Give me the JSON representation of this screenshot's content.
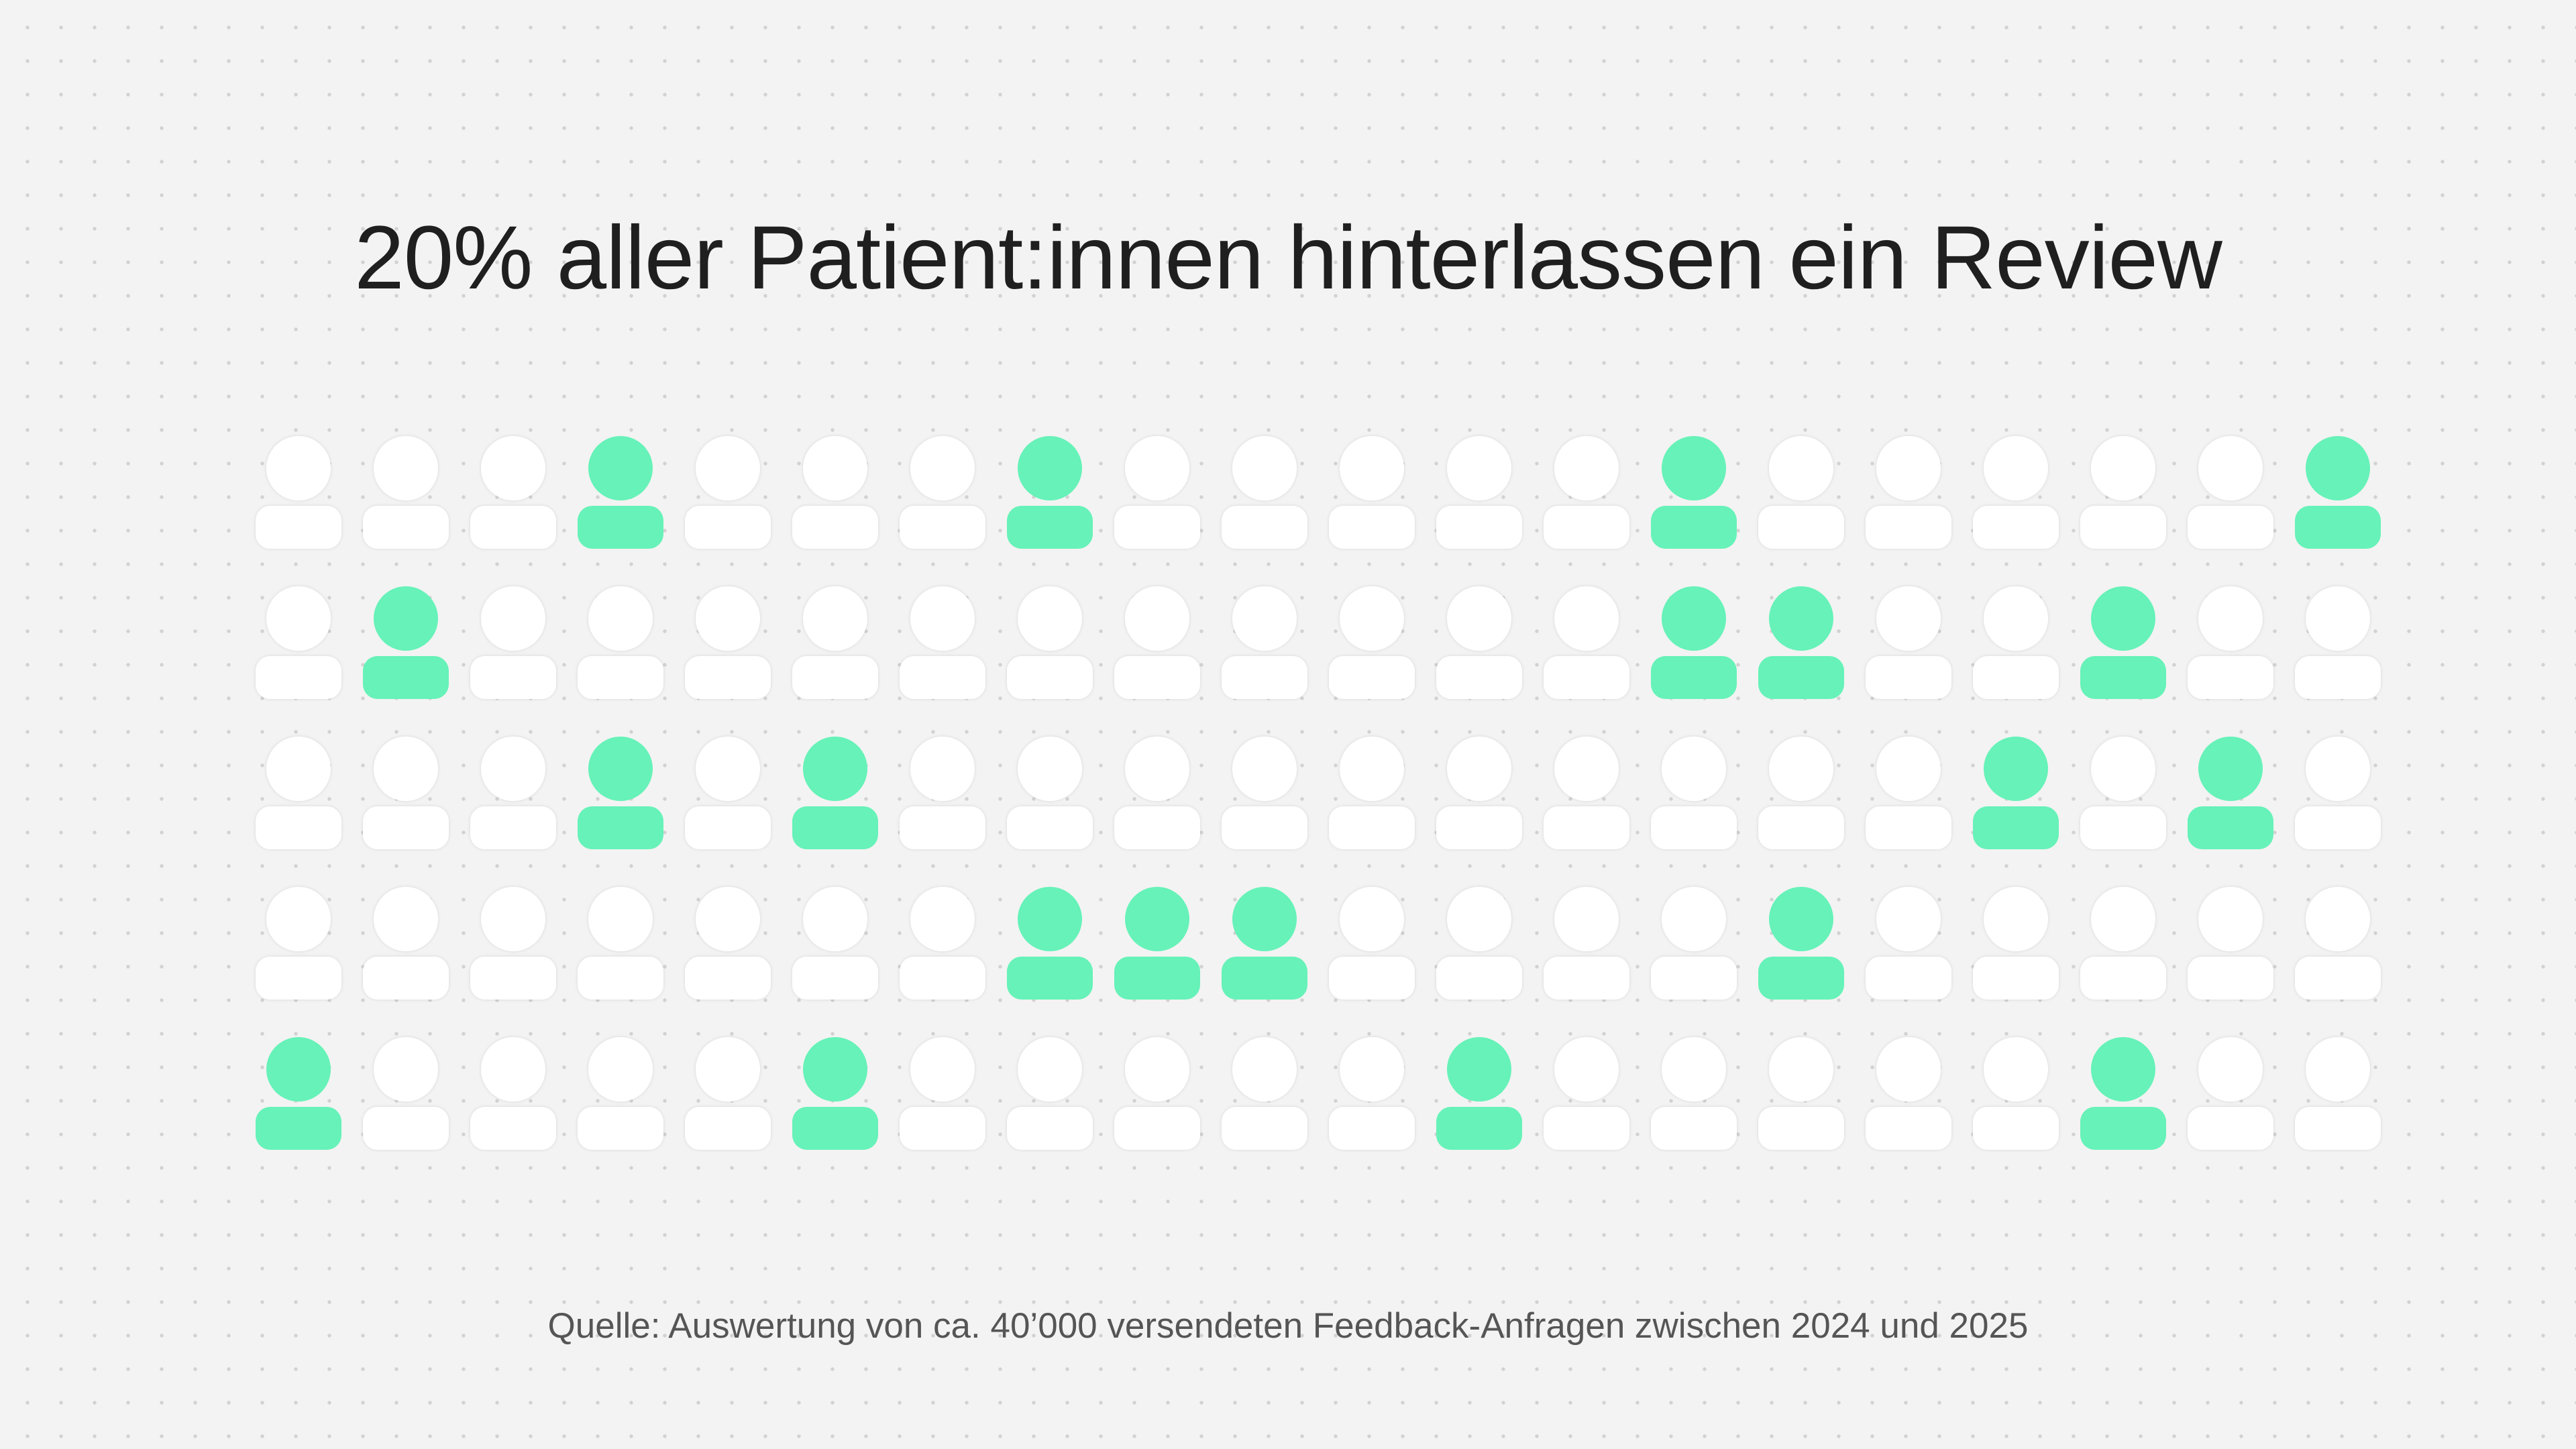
{
  "chart_data": {
    "type": "pictogram",
    "title": "20% aller Patient:innen hinterlassen ein Review",
    "source": "Quelle: Auswertung von ca. 40’000 versendeten Feedback-Anfragen zwischen 2024 und 2025",
    "share_reviewed_percent": 20,
    "icon": "person-icon",
    "rows": 5,
    "columns": 20,
    "total_icons": 100,
    "highlighted_icons": 20,
    "highlight_color": "#66f2b8",
    "base_color": "#ffffff",
    "grid": [
      [
        0,
        0,
        0,
        1,
        0,
        0,
        0,
        1,
        0,
        0,
        0,
        0,
        0,
        1,
        0,
        0,
        0,
        0,
        0,
        1
      ],
      [
        0,
        1,
        0,
        0,
        0,
        0,
        0,
        0,
        0,
        0,
        0,
        0,
        0,
        1,
        1,
        0,
        0,
        1,
        0,
        0
      ],
      [
        0,
        0,
        0,
        1,
        0,
        1,
        0,
        0,
        0,
        0,
        0,
        0,
        0,
        0,
        0,
        0,
        1,
        0,
        1,
        0
      ],
      [
        0,
        0,
        0,
        0,
        0,
        0,
        0,
        1,
        1,
        1,
        0,
        0,
        0,
        0,
        1,
        0,
        0,
        0,
        0,
        0
      ],
      [
        1,
        0,
        0,
        0,
        0,
        1,
        0,
        0,
        0,
        0,
        0,
        1,
        0,
        0,
        0,
        0,
        0,
        1,
        0,
        0
      ]
    ]
  }
}
